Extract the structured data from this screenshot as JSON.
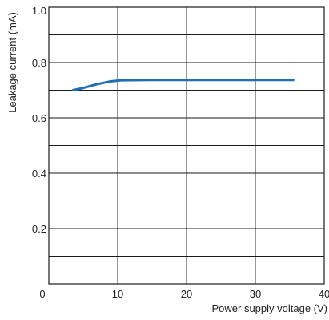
{
  "chart_data": {
    "type": "line",
    "title": "",
    "xlabel": "Power supply voltage (V)",
    "ylabel": "Leakage current (mA)",
    "xlim": [
      0,
      40
    ],
    "ylim": [
      0,
      1.0
    ],
    "x_ticks": [
      0,
      10,
      20,
      30,
      40
    ],
    "x_tick_labels": [
      "0",
      "10",
      "20",
      "30",
      "40"
    ],
    "y_ticks": [
      0.2,
      0.4,
      0.6,
      0.8,
      1.0
    ],
    "y_tick_labels": [
      "0.2",
      "0.4",
      "0.6",
      "0.8",
      "1.0"
    ],
    "grid": true,
    "x_grid_step": 10,
    "y_grid_step": 0.1,
    "series": [
      {
        "color": "#1f6eb5",
        "points": [
          [
            3.5,
            0.7
          ],
          [
            5,
            0.708
          ],
          [
            7,
            0.722
          ],
          [
            9,
            0.732
          ],
          [
            10.5,
            0.736
          ],
          [
            15,
            0.737
          ],
          [
            20,
            0.737
          ],
          [
            25,
            0.737
          ],
          [
            30,
            0.737
          ],
          [
            35.5,
            0.737
          ]
        ]
      }
    ]
  }
}
